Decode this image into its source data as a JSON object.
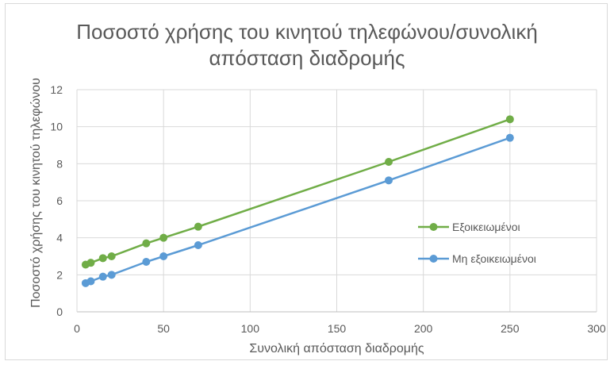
{
  "chart_data": {
    "type": "line",
    "title_lines": [
      "Ποσοστό χρήσης του κινητού τηλεφώνου/συνολική",
      "απόσταση διαδρομής"
    ],
    "xlabel": "Συνολική απόσταση διαδρομής",
    "ylabel": "Ποσοστό χρήσης του κινητού τηλεφώνου",
    "xlim": [
      0,
      300
    ],
    "ylim": [
      0,
      12
    ],
    "x_ticks": [
      0,
      50,
      100,
      150,
      200,
      250,
      300
    ],
    "y_ticks": [
      0,
      2,
      4,
      6,
      8,
      10,
      12
    ],
    "grid": true,
    "legend_position": "right",
    "series": [
      {
        "name": "Εξοικειωμένοι",
        "color": "#70ad47",
        "x": [
          5,
          8,
          15,
          20,
          40,
          50,
          70,
          180,
          250
        ],
        "y": [
          2.55,
          2.65,
          2.9,
          3.0,
          3.7,
          4.0,
          4.6,
          8.1,
          10.4
        ]
      },
      {
        "name": "Μη εξοικειωμένοι",
        "color": "#5b9bd5",
        "x": [
          5,
          8,
          15,
          20,
          40,
          50,
          70,
          180,
          250
        ],
        "y": [
          1.55,
          1.65,
          1.9,
          2.0,
          2.7,
          3.0,
          3.6,
          7.1,
          9.4
        ]
      }
    ]
  }
}
